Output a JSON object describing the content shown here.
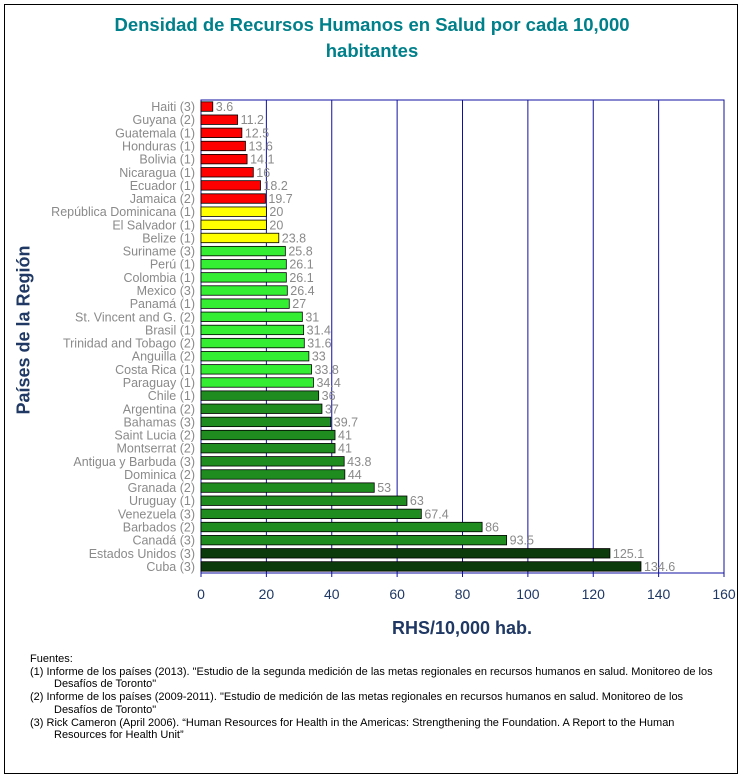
{
  "chart_data": {
    "type": "bar",
    "orientation": "horizontal",
    "title": "Densidad de Recursos Humanos en Salud por cada 10,000 habitantes",
    "xlabel": "RHS/10,000 hab.",
    "ylabel": "Países de la Región",
    "xlim": [
      0,
      160
    ],
    "xticks": [
      "0",
      "20",
      "40",
      "60",
      "80",
      "100",
      "120",
      "140",
      "160"
    ],
    "grid": "vertical",
    "categories": [
      "Haiti (3)",
      "Guyana  (2)",
      "Guatemala (1)",
      "Honduras (1)",
      "Bolivia (1)",
      "Nicaragua (1)",
      "Ecuador (1)",
      "Jamaica (2)",
      "República Dominicana (1)",
      "El Salvador (1)",
      "Belize (1)",
      "Suriname (3)",
      "Perú (1)",
      "Colombia (1)",
      "Mexico (3)",
      "Panamá (1)",
      "St. Vincent and G. (2)",
      "Brasil (1)",
      "Trinidad and Tobago (2)",
      "Anguilla (2)",
      "Costa Rica (1)",
      "Paraguay (1)",
      "Chile (1)",
      "Argentina (2)",
      "Bahamas (3)",
      "Saint Lucia (2)",
      "Montserrat (2)",
      "Antigua y Barbuda (3)",
      "Dominica (2)",
      "Granada (2)",
      "Uruguay (1)",
      "Venezuela (3)",
      "Barbados (2)",
      "Canadá (3)",
      "Estados Unidos (3)",
      "Cuba (3)"
    ],
    "values": [
      3.6,
      11.2,
      12.5,
      13.6,
      14.1,
      16,
      18.2,
      19.7,
      20,
      20,
      23.8,
      25.8,
      26.1,
      26.1,
      26.4,
      27,
      31,
      31.4,
      31.6,
      33,
      33.8,
      34.4,
      36,
      37,
      39.7,
      41,
      41,
      43.8,
      44,
      53,
      63,
      67.4,
      86,
      93.5,
      125.1,
      134.6
    ],
    "value_labels": [
      "3.6",
      "11.2",
      "12.5",
      "13.6",
      "14.1",
      "16",
      "18.2",
      "19.7",
      "20",
      "20",
      "23.8",
      "25.8",
      "26.1",
      "26.1",
      "26.4",
      "27",
      "31",
      "31.4",
      "31.6",
      "33",
      "33.8",
      "34.4",
      "36",
      "37",
      "39.7",
      "41",
      "41",
      "43.8",
      "44",
      "53",
      "63",
      "67.4",
      "86",
      "93.5",
      "125.1",
      "134.6"
    ],
    "bar_colors": [
      "#ff0000",
      "#ff0000",
      "#ff0000",
      "#ff0000",
      "#ff0000",
      "#ff0000",
      "#ff0000",
      "#ff0000",
      "#ffff00",
      "#ffff00",
      "#ffff00",
      "#33ee33",
      "#33ee33",
      "#33ee33",
      "#33ee33",
      "#33ee33",
      "#33ee33",
      "#33ee33",
      "#33ee33",
      "#33ee33",
      "#33ee33",
      "#33ee33",
      "#1f8c1f",
      "#1f8c1f",
      "#1f8c1f",
      "#1f8c1f",
      "#1f8c1f",
      "#1f8c1f",
      "#1f8c1f",
      "#1f8c1f",
      "#1f8c1f",
      "#1f8c1f",
      "#1f8c1f",
      "#1f8c1f",
      "#0b3a0b",
      "#0b3a0b"
    ]
  },
  "sources": {
    "heading": "Fuentes:",
    "items": [
      "(1)  Informe de los países (2013). \"Estudio de la segunda medición de las metas regionales en recursos humanos en salud. Monitoreo de los Desafíos de Toronto\"",
      "(2)  Informe de los países (2009-2011). \"Estudio de medición de las metas regionales en recursos humanos en salud. Monitoreo de los Desafíos de Toronto\"",
      "(3) Rick Cameron (April 2006). “Human Resources for Health in the Americas: Strengthening the Foundation. A Report to the Human Resources for Health Unit”"
    ]
  }
}
